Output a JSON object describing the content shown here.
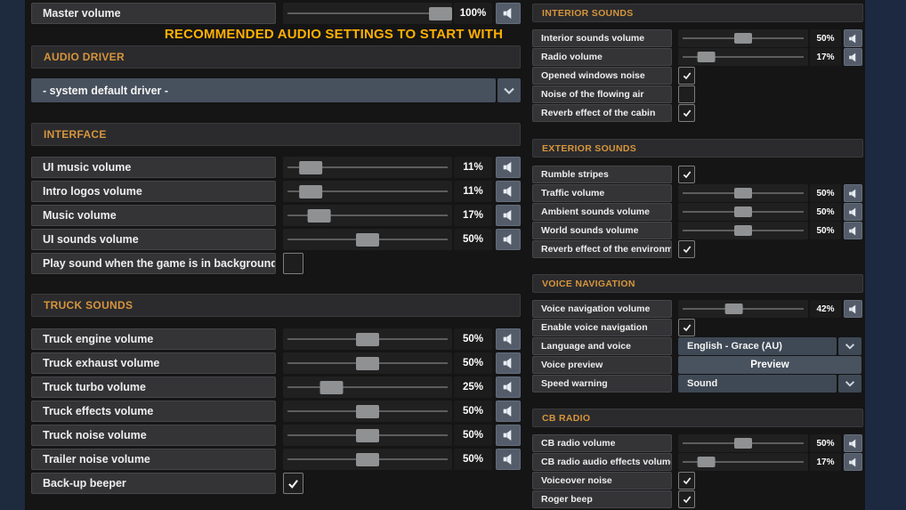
{
  "title": "RECOMMENDED AUDIO SETTINGS TO START WITH",
  "colors": {
    "title_yellow": "#ffb000",
    "section_header_orange": "#d6953c",
    "page_edge_navy": "#1e2a3e",
    "dropdown_blue_gray": "#3f4955",
    "slider_thumb_gray": "#8f9193",
    "speaker_button_gray": "#545c6a"
  },
  "icons": {
    "speaker-icon": "🔊",
    "chevron-down-icon": "⌄",
    "checkmark-icon": "✓"
  },
  "master": {
    "rows": [
      {
        "label": "Master volume",
        "type": "slider",
        "value": 100,
        "display": "100%"
      }
    ]
  },
  "sections": {
    "audio_driver": {
      "header": "AUDIO DRIVER",
      "selected_option": "- system default driver -"
    },
    "interface": {
      "header": "INTERFACE",
      "rows": [
        {
          "label": "UI music volume",
          "type": "slider",
          "value": 11,
          "display": "11%"
        },
        {
          "label": "Intro logos volume",
          "type": "slider",
          "value": 11,
          "display": "11%"
        },
        {
          "label": "Music volume",
          "type": "slider",
          "value": 17,
          "display": "17%"
        },
        {
          "label": "UI sounds volume",
          "type": "slider",
          "value": 50,
          "display": "50%"
        },
        {
          "label": "Play sound when the game is in background",
          "type": "checkbox",
          "checked": false
        }
      ]
    },
    "truck_sounds": {
      "header": "TRUCK SOUNDS",
      "rows": [
        {
          "label": "Truck engine volume",
          "type": "slider",
          "value": 50,
          "display": "50%"
        },
        {
          "label": "Truck exhaust volume",
          "type": "slider",
          "value": 50,
          "display": "50%"
        },
        {
          "label": "Truck turbo volume",
          "type": "slider",
          "value": 25,
          "display": "25%"
        },
        {
          "label": "Truck effects volume",
          "type": "slider",
          "value": 50,
          "display": "50%"
        },
        {
          "label": "Truck noise volume",
          "type": "slider",
          "value": 50,
          "display": "50%"
        },
        {
          "label": "Trailer noise volume",
          "type": "slider",
          "value": 50,
          "display": "50%"
        },
        {
          "label": "Back-up beeper",
          "type": "checkbox",
          "checked": true
        }
      ]
    },
    "interior_sounds": {
      "header": "INTERIOR SOUNDS",
      "rows": [
        {
          "label": "Interior sounds volume",
          "type": "slider",
          "value": 50,
          "display": "50%"
        },
        {
          "label": "Radio volume",
          "type": "slider",
          "value": 17,
          "display": "17%"
        },
        {
          "label": "Opened windows noise",
          "type": "checkbox",
          "checked": true
        },
        {
          "label": "Noise of the flowing air",
          "type": "checkbox",
          "checked": false
        },
        {
          "label": "Reverb effect of the cabin",
          "type": "checkbox",
          "checked": true
        }
      ]
    },
    "exterior_sounds": {
      "header": "EXTERIOR SOUNDS",
      "rows": [
        {
          "label": "Rumble stripes",
          "type": "checkbox",
          "checked": true
        },
        {
          "label": "Traffic volume",
          "type": "slider",
          "value": 50,
          "display": "50%"
        },
        {
          "label": "Ambient sounds volume",
          "type": "slider",
          "value": 50,
          "display": "50%"
        },
        {
          "label": "World sounds volume",
          "type": "slider",
          "value": 50,
          "display": "50%"
        },
        {
          "label": "Reverb effect of the environment",
          "type": "checkbox",
          "checked": true
        }
      ]
    },
    "voice_navigation": {
      "header": "VOICE NAVIGATION",
      "rows": [
        {
          "label": "Voice navigation volume",
          "type": "slider",
          "value": 42,
          "display": "42%"
        },
        {
          "label": "Enable voice navigation",
          "type": "checkbox",
          "checked": true
        },
        {
          "label": "Language and voice",
          "type": "dropdown",
          "value": "English - Grace (AU)"
        },
        {
          "label": "Voice preview",
          "type": "button",
          "value": "Preview"
        },
        {
          "label": "Speed warning",
          "type": "dropdown",
          "value": "Sound"
        }
      ]
    },
    "cb_radio": {
      "header": "CB RADIO",
      "rows": [
        {
          "label": "CB radio volume",
          "type": "slider",
          "value": 50,
          "display": "50%"
        },
        {
          "label": "CB radio audio effects volume",
          "type": "slider",
          "value": 17,
          "display": "17%"
        },
        {
          "label": "Voiceover noise",
          "type": "checkbox",
          "checked": true
        },
        {
          "label": "Roger beep",
          "type": "checkbox",
          "checked": true
        }
      ]
    }
  }
}
